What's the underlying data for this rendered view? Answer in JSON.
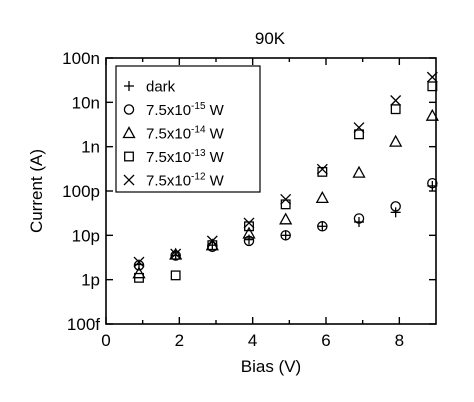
{
  "chart_data": {
    "type": "scatter",
    "title": "90K",
    "xlabel": "Bias (V)",
    "ylabel": "Current (A)",
    "xlim": [
      0,
      9
    ],
    "ylim": [
      1e-13,
      1e-07
    ],
    "yscale": "log",
    "xticks": [
      0,
      2,
      4,
      6,
      8
    ],
    "yticks": [
      {
        "value": 1e-13,
        "label": "100f"
      },
      {
        "value": 1e-12,
        "label": "1p"
      },
      {
        "value": 1e-11,
        "label": "10p"
      },
      {
        "value": 1e-10,
        "label": "100p"
      },
      {
        "value": 1e-09,
        "label": "1n"
      },
      {
        "value": 1e-08,
        "label": "10n"
      },
      {
        "value": 1e-07,
        "label": "100n"
      }
    ],
    "legend_position": "top-left",
    "series": [
      {
        "name": "dark",
        "legend_label": {
          "base": "dark",
          "sup": "",
          "unit": ""
        },
        "marker": "plus",
        "x": [
          0.9,
          1.9,
          2.9,
          3.9,
          4.9,
          5.9,
          6.9,
          7.9,
          8.9
        ],
        "y": [
          2.2e-12,
          3.5e-12,
          6e-12,
          8e-12,
          1e-11,
          1.6e-11,
          2e-11,
          3.3e-11,
          1.3e-10
        ]
      },
      {
        "name": "7.5x10-15 W",
        "legend_label": {
          "base": "7.5x10",
          "sup": "-15",
          "unit": " W"
        },
        "marker": "circle",
        "x": [
          0.9,
          1.9,
          2.9,
          3.9,
          4.9,
          5.9,
          6.9,
          7.9,
          8.9
        ],
        "y": [
          2.1e-12,
          3.5e-12,
          5.5e-12,
          7.5e-12,
          1e-11,
          1.6e-11,
          2.4e-11,
          4.5e-11,
          1.5e-10
        ]
      },
      {
        "name": "7.5x10-14 W",
        "legend_label": {
          "base": "7.5x10",
          "sup": "-14",
          "unit": " W"
        },
        "marker": "triangle",
        "x": [
          0.9,
          1.9,
          2.9,
          3.9,
          4.9,
          5.9,
          6.9,
          7.9,
          8.9
        ],
        "y": [
          1.4e-12,
          3.7e-12,
          6e-12,
          1.1e-11,
          2.3e-11,
          7e-11,
          2.6e-10,
          1.3e-09,
          5e-09
        ]
      },
      {
        "name": "7.5x10-13 W",
        "legend_label": {
          "base": "7.5x10",
          "sup": "-13",
          "unit": " W"
        },
        "marker": "square",
        "x": [
          0.9,
          1.9,
          2.9,
          3.9,
          4.9,
          5.9,
          6.9,
          7.9,
          8.9
        ],
        "y": [
          1.1e-12,
          1.25e-12,
          6e-12,
          1.6e-11,
          5e-11,
          2.7e-10,
          1.9e-09,
          7e-09,
          2.3e-08
        ]
      },
      {
        "name": "7.5x10-12 W",
        "legend_label": {
          "base": "7.5x10",
          "sup": "-12",
          "unit": " W"
        },
        "marker": "cross",
        "x": [
          0.9,
          1.9,
          2.9,
          3.9,
          4.9,
          5.9,
          6.9,
          7.9,
          8.9
        ],
        "y": [
          2.5e-12,
          3.8e-12,
          7.5e-12,
          1.9e-11,
          6.5e-11,
          3.1e-10,
          2.7e-09,
          1.1e-08,
          3.7e-08
        ]
      }
    ]
  }
}
